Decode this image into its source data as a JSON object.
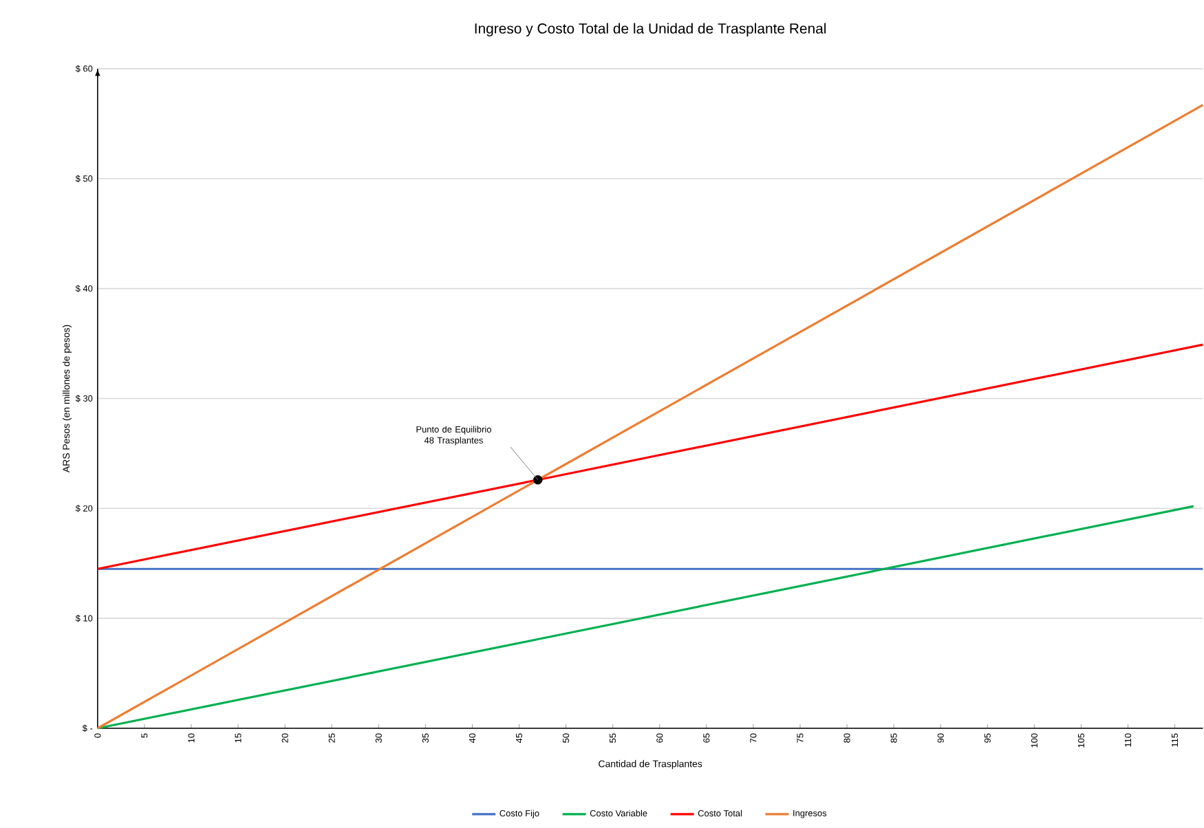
{
  "chart_data": {
    "type": "line",
    "title": "Ingreso y Costo Total de la Unidad de Trasplante Renal",
    "xlabel": "Cantidad de Trasplantes",
    "ylabel": "ARS Pesos (en millones de pesos)",
    "series": [
      {
        "name": "Costo Fijo",
        "color": "#4472c4",
        "x": [
          0,
          118
        ],
        "values": [
          14.5,
          14.5
        ]
      },
      {
        "name": "Costo Variable",
        "color": "#00b050",
        "x": [
          0,
          47,
          117
        ],
        "values": [
          0,
          8.1,
          20.2
        ]
      },
      {
        "name": "Costo Total",
        "color": "#ff0000",
        "x": [
          0,
          47,
          118
        ],
        "values": [
          14.5,
          22.6,
          34.9
        ]
      },
      {
        "name": "Ingresos",
        "color": "#ed7d31",
        "x": [
          0,
          47,
          118
        ],
        "values": [
          0,
          22.6,
          56.7
        ]
      },
      {
        "type": "scatter",
        "color": "#000000",
        "marker": "circle",
        "x": [
          47
        ],
        "values": [
          22.6
        ]
      }
    ],
    "xlim": [
      0,
      118
    ],
    "xticks": [
      0,
      5,
      10,
      15,
      20,
      25,
      30,
      35,
      40,
      45,
      50,
      55,
      60,
      65,
      70,
      75,
      80,
      85,
      90,
      95,
      100,
      105,
      110,
      115
    ],
    "ylim": [
      0,
      60
    ],
    "yticks": [
      {
        "value": 0,
        "label": "$ -"
      },
      {
        "value": 10,
        "label": "$ 10"
      },
      {
        "value": 20,
        "label": "$ 20"
      },
      {
        "value": 30,
        "label": "$ 30"
      },
      {
        "value": 40,
        "label": "$ 40"
      },
      {
        "value": 50,
        "label": "$ 50"
      },
      {
        "value": 60,
        "label": "$ 60"
      }
    ],
    "grid": "y",
    "legend": "bottom",
    "marker": "none",
    "line_style": "solid",
    "annotations": [
      "Punto de Equilibrio 48 Trasplantes"
    ]
  }
}
